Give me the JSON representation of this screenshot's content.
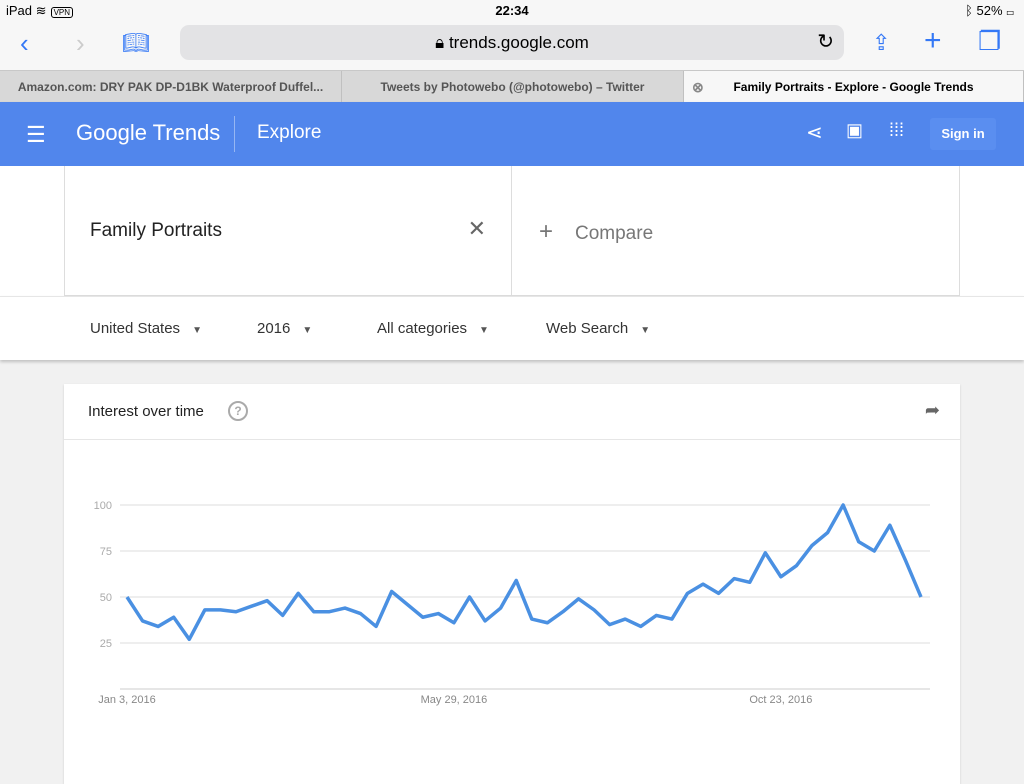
{
  "status": {
    "device": "iPad",
    "vpn": "VPN",
    "time": "22:34",
    "battery": "52%"
  },
  "browser": {
    "url": "trends.google.com",
    "tabs": [
      {
        "label": "Amazon.com: DRY PAK DP-D1BK Waterproof Duffel..."
      },
      {
        "label": "Tweets by Photowebo (@photowebo) – Twitter"
      },
      {
        "label": "Family Portraits - Explore - Google Trends",
        "active": true
      }
    ]
  },
  "header": {
    "logo": "Google Trends",
    "section": "Explore",
    "signin": "Sign in",
    "color": "#5186ec"
  },
  "search": {
    "term": "Family Portraits",
    "compare": "Compare"
  },
  "filters": [
    {
      "label": "United States"
    },
    {
      "label": "2016"
    },
    {
      "label": "All categories"
    },
    {
      "label": "Web Search"
    }
  ],
  "card": {
    "title": "Interest over time"
  },
  "chart_data": {
    "type": "line",
    "color": "#4a90e2",
    "ylim": [
      0,
      100
    ],
    "yticks": [
      25,
      50,
      75,
      100
    ],
    "grid": true,
    "xticks": [
      "Jan 3, 2016",
      "May 29, 2016",
      "Oct 23, 2016"
    ],
    "x": [
      "2016-01-03",
      "2016-01-10",
      "2016-01-17",
      "2016-01-24",
      "2016-01-31",
      "2016-02-07",
      "2016-02-14",
      "2016-02-21",
      "2016-02-28",
      "2016-03-06",
      "2016-03-13",
      "2016-03-20",
      "2016-03-27",
      "2016-04-03",
      "2016-04-10",
      "2016-04-17",
      "2016-04-24",
      "2016-05-01",
      "2016-05-08",
      "2016-05-15",
      "2016-05-22",
      "2016-05-29",
      "2016-06-05",
      "2016-06-12",
      "2016-06-19",
      "2016-06-26",
      "2016-07-03",
      "2016-07-10",
      "2016-07-17",
      "2016-07-24",
      "2016-07-31",
      "2016-08-07",
      "2016-08-14",
      "2016-08-21",
      "2016-08-28",
      "2016-09-04",
      "2016-09-11",
      "2016-09-18",
      "2016-09-25",
      "2016-10-02",
      "2016-10-09",
      "2016-10-16",
      "2016-10-23",
      "2016-10-30",
      "2016-11-06",
      "2016-11-13",
      "2016-11-20",
      "2016-11-27",
      "2016-12-04",
      "2016-12-11",
      "2016-12-18",
      "2016-12-25"
    ],
    "values": [
      50,
      37,
      34,
      39,
      27,
      43,
      43,
      42,
      45,
      48,
      40,
      52,
      42,
      42,
      44,
      41,
      34,
      53,
      46,
      39,
      41,
      36,
      50,
      37,
      44,
      59,
      38,
      36,
      42,
      49,
      43,
      35,
      38,
      34,
      40,
      38,
      52,
      57,
      52,
      60,
      58,
      74,
      61,
      67,
      78,
      85,
      100,
      80,
      75,
      89,
      70,
      50
    ]
  }
}
